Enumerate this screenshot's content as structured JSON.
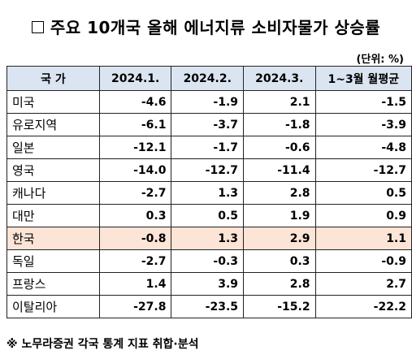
{
  "title": "주요 10개국 올해 에너지류 소비자물가 상승률",
  "unit": "(단위: %)",
  "table": {
    "headers": [
      "국 가",
      "2024.1.",
      "2024.2.",
      "2024.3.",
      "1~3월 월평균"
    ],
    "rows": [
      {
        "country": "미국",
        "values": [
          "-4.6",
          "-1.9",
          "2.1",
          "-1.5"
        ]
      },
      {
        "country": "유로지역",
        "values": [
          "-6.1",
          "-3.7",
          "-1.8",
          "-3.9"
        ]
      },
      {
        "country": "일본",
        "values": [
          "-12.1",
          "-1.7",
          "-0.6",
          "-4.8"
        ]
      },
      {
        "country": "영국",
        "values": [
          "-14.0",
          "-12.7",
          "-11.4",
          "-12.7"
        ]
      },
      {
        "country": "캐나다",
        "values": [
          "-2.7",
          "1.3",
          "2.8",
          "0.5"
        ]
      },
      {
        "country": "대만",
        "values": [
          "0.3",
          "0.5",
          "1.9",
          "0.9"
        ]
      },
      {
        "country": "한국",
        "values": [
          "-0.8",
          "1.3",
          "2.9",
          "1.1"
        ],
        "highlight": true
      },
      {
        "country": "독일",
        "values": [
          "-2.7",
          "-0.3",
          "0.3",
          "-0.9"
        ]
      },
      {
        "country": "프랑스",
        "values": [
          "1.4",
          "3.9",
          "2.8",
          "2.7"
        ]
      },
      {
        "country": "이탈리아",
        "values": [
          "-27.8",
          "-23.5",
          "-15.2",
          "-22.2"
        ]
      }
    ]
  },
  "note": "※ 노무라증권 각국 통계 지표 취합·분석",
  "colors": {
    "header_bg": "#dbe5f1",
    "highlight_bg": "#fce4d6"
  }
}
